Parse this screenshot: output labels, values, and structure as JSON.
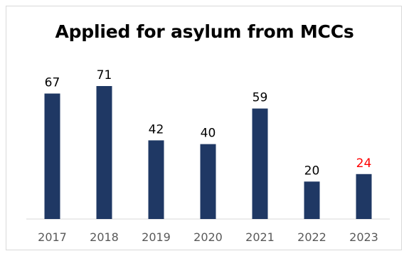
{
  "chart_data": {
    "type": "bar",
    "title": "Applied for asylum from MCCs",
    "xlabel": "",
    "ylabel": "",
    "categories": [
      "2017",
      "2018",
      "2019",
      "2020",
      "2021",
      "2022",
      "2023"
    ],
    "values": [
      67,
      71,
      42,
      40,
      59,
      20,
      24
    ],
    "ylim": [
      0,
      71
    ],
    "grid": false,
    "bar_color": "#1f3864",
    "label_color": "#000000",
    "highlight": {
      "category": "2023",
      "label_color": "#ff0000"
    }
  }
}
